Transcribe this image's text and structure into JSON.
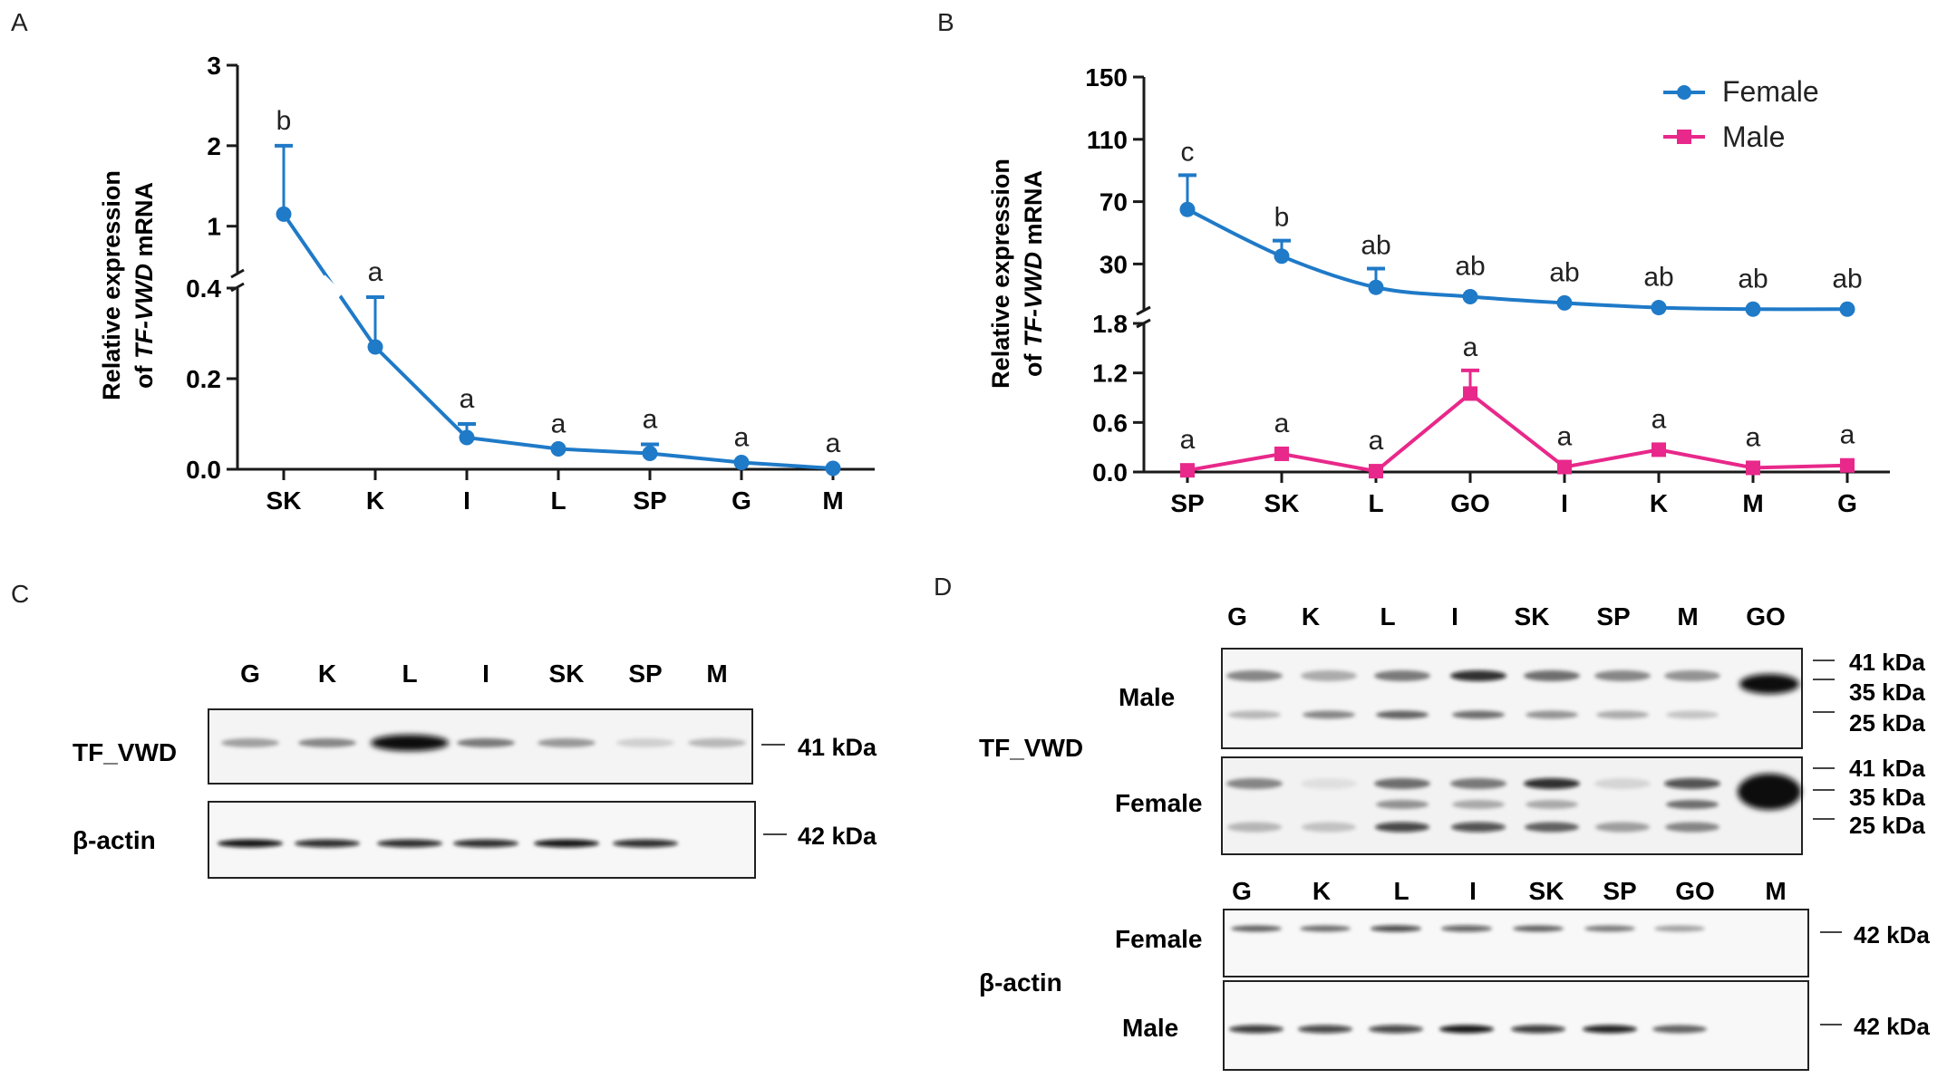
{
  "panels": {
    "A": "A",
    "B": "B",
    "C": "C",
    "D": "D"
  },
  "colors": {
    "female": "#1f7ac8",
    "male": "#e8288a",
    "axis": "#1a1a1a"
  },
  "chart_data": [
    {
      "panel": "A",
      "type": "line",
      "ylabel_line1": "Relative expression",
      "ylabel_line2_prefix": "of ",
      "ylabel_gene": "TF-VWD",
      "ylabel_line2_suffix": " mRNA",
      "categories": [
        "SK",
        "K",
        "I",
        "L",
        "SP",
        "G",
        "M"
      ],
      "axis_broken": true,
      "ylim_lower": [
        0,
        0.4
      ],
      "ylim_upper": [
        0.4,
        3
      ],
      "yticks_lower": [
        "0.0",
        "0.2",
        "0.4"
      ],
      "yticks_upper": [
        "1",
        "2",
        "3"
      ],
      "series": [
        {
          "values": [
            1.15,
            0.27,
            0.07,
            0.045,
            0.035,
            0.015,
            0.002
          ],
          "error": [
            0.85,
            0.11,
            0.03,
            0.0,
            0.02,
            0.0,
            0.0
          ],
          "letters": [
            "b",
            "a",
            "a",
            "a",
            "a",
            "a",
            "a"
          ]
        }
      ]
    },
    {
      "panel": "B",
      "type": "line",
      "ylabel_line1": "Relative expression",
      "ylabel_line2_prefix": "of ",
      "ylabel_gene": "TF-VWD",
      "ylabel_line2_suffix": " mRNA",
      "categories": [
        "SP",
        "SK",
        "L",
        "GO",
        "I",
        "K",
        "M",
        "G"
      ],
      "axis_broken": true,
      "ylim_lower": [
        0,
        1.8
      ],
      "ylim_upper": [
        0,
        150
      ],
      "yticks_lower": [
        "0.0",
        "0.6",
        "1.2",
        "1.8"
      ],
      "yticks_upper": [
        "30",
        "70",
        "110",
        "150"
      ],
      "legend_position": "top-right",
      "series": [
        {
          "name": "Female",
          "values": [
            65,
            35,
            15,
            9,
            5,
            2,
            1,
            1
          ],
          "error": [
            22,
            10,
            12,
            0,
            0,
            0,
            0,
            0
          ],
          "letters": [
            "c",
            "b",
            "ab",
            "ab",
            "ab",
            "ab",
            "ab",
            "ab"
          ]
        },
        {
          "name": "Male",
          "values": [
            0.02,
            0.22,
            0.01,
            0.95,
            0.06,
            0.27,
            0.05,
            0.08
          ],
          "error": [
            0,
            0,
            0,
            0.28,
            0,
            0,
            0,
            0
          ],
          "letters": [
            "a",
            "a",
            "a",
            "a",
            "a",
            "a",
            "a",
            "a"
          ]
        }
      ]
    }
  ],
  "blotC": {
    "lanes": [
      "G",
      "K",
      "L",
      "I",
      "SK",
      "SP",
      "M"
    ],
    "rows": [
      {
        "label": "TF_VWD",
        "kda": "41 kDa"
      },
      {
        "label": "β-actin",
        "kda": "42 kDa"
      }
    ]
  },
  "blotD": {
    "lanes_top": [
      "G",
      "K",
      "L",
      "I",
      "SK",
      "SP",
      "M",
      "GO"
    ],
    "lanes_bottom": [
      "G",
      "K",
      "L",
      "I",
      "SK",
      "SP",
      "GO",
      "M"
    ],
    "group_top": "TF_VWD",
    "group_bottom": "β-actin",
    "rows": [
      {
        "label": "Male",
        "kda": [
          "41 kDa",
          "35 kDa",
          "25 kDa"
        ]
      },
      {
        "label": "Female",
        "kda": [
          "41 kDa",
          "35 kDa",
          "25 kDa"
        ]
      },
      {
        "label": "Female",
        "kda": [
          "42 kDa"
        ]
      },
      {
        "label": "Male",
        "kda": [
          "42 kDa"
        ]
      }
    ]
  }
}
